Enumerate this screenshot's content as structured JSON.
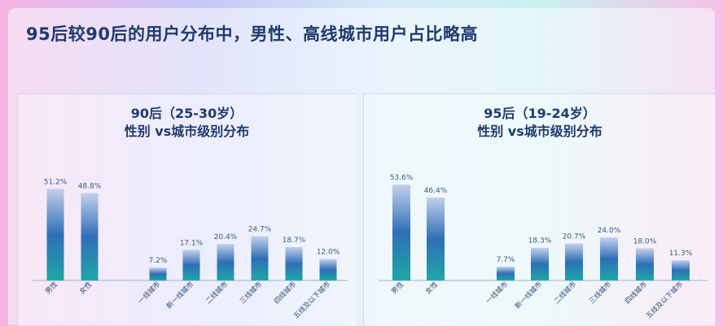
{
  "headline": "95后较90后的用户分布中，男性、高线城市用户占比略高",
  "chart_data": [
    {
      "type": "bar",
      "title": "90后（25-30岁）",
      "subtitle": "性别 vs城市级别分布",
      "categories": [
        "男性",
        "女性",
        "一线城市",
        "新一线城市",
        "二线城市",
        "三线城市",
        "四线城市",
        "五线及以下城市"
      ],
      "values": [
        51.2,
        48.8,
        7.2,
        17.1,
        20.4,
        24.7,
        18.7,
        12.0
      ],
      "value_labels": [
        "51.2%",
        "48.8%",
        "7.2%",
        "17.1%",
        "20.4%",
        "24.7%",
        "18.7%",
        "12.0%"
      ],
      "unit": "%",
      "ylim": [
        0,
        60
      ],
      "grid": false,
      "colors": {
        "bar_top": "#c3d0ec",
        "bar_mid": "#2e6fb6",
        "bar_bottom": "#1ea7a8"
      }
    },
    {
      "type": "bar",
      "title": "95后（19-24岁）",
      "subtitle": "性别 vs城市级别分布",
      "categories": [
        "男性",
        "女性",
        "一线城市",
        "新一线城市",
        "二线城市",
        "三线城市",
        "四线城市",
        "五线及以下城市"
      ],
      "values": [
        53.6,
        46.4,
        7.7,
        18.3,
        20.7,
        24.0,
        18.0,
        11.3
      ],
      "value_labels": [
        "53.6%",
        "46.4%",
        "7.7%",
        "18.3%",
        "20.7%",
        "24.0%",
        "18.0%",
        "11.3%"
      ],
      "unit": "%",
      "ylim": [
        0,
        60
      ],
      "grid": false,
      "colors": {
        "bar_top": "#c3d0ec",
        "bar_mid": "#2e6fb6",
        "bar_bottom": "#1ea7a8"
      }
    }
  ]
}
